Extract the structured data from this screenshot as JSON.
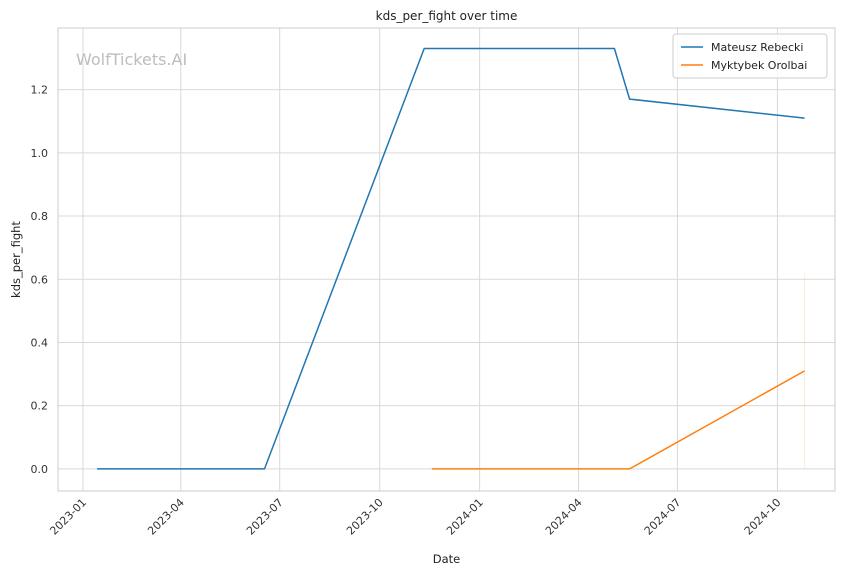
{
  "chart_data": {
    "type": "line",
    "title": "kds_per_fight over time",
    "xlabel": "Date",
    "ylabel": "kds_per_fight",
    "watermark": "WolfTickets.AI",
    "x_ticks": [
      "2023-01",
      "2023-04",
      "2023-07",
      "2023-10",
      "2024-01",
      "2024-04",
      "2024-07",
      "2024-10"
    ],
    "y_ticks": [
      "0.0",
      "0.2",
      "0.4",
      "0.6",
      "0.8",
      "1.0",
      "1.2"
    ],
    "xlim": [
      "2022-12-09",
      "2024-11-23"
    ],
    "ylim": [
      -0.07,
      1.395
    ],
    "grid": true,
    "legend_position": "top-right",
    "series": [
      {
        "name": "Mateusz Rebecki",
        "color": "#1f77b4",
        "points": [
          {
            "x": "2023-01-14",
            "y": 0.0
          },
          {
            "x": "2023-06-17",
            "y": 0.0
          },
          {
            "x": "2023-11-11",
            "y": 1.33
          },
          {
            "x": "2024-05-04",
            "y": 1.33
          },
          {
            "x": "2024-05-18",
            "y": 1.17
          },
          {
            "x": "2024-10-26",
            "y": 1.11
          }
        ]
      },
      {
        "name": "Myktybek Orolbai",
        "color": "#ff7f0e",
        "points": [
          {
            "x": "2023-11-18",
            "y": 0.0
          },
          {
            "x": "2024-05-18",
            "y": 0.0
          },
          {
            "x": "2024-10-26",
            "y": 0.31
          }
        ],
        "confidence_band": {
          "x": "2024-10-26",
          "low": 0.0,
          "high": 0.62
        }
      }
    ]
  }
}
